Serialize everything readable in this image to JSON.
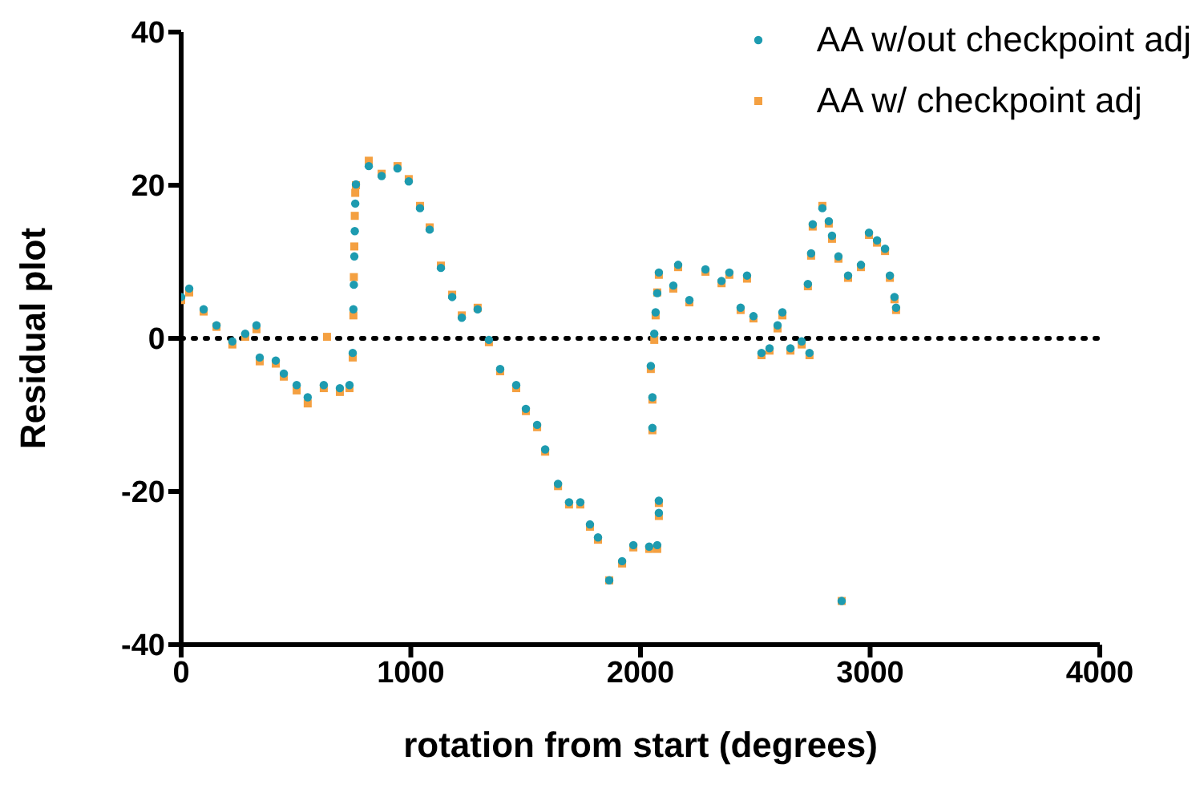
{
  "chart_data": {
    "type": "scatter",
    "xlabel": "rotation from start (degrees)",
    "ylabel": "Residual plot",
    "xlim": [
      0,
      4000
    ],
    "xticks": [
      0,
      1000,
      2000,
      3000,
      4000
    ],
    "ylim": [
      -40,
      40
    ],
    "yticks": [
      -40,
      -20,
      0,
      20,
      40
    ],
    "legend": "top right",
    "ref_lines": [
      {
        "axis": "y",
        "value": 0,
        "color": "#000000",
        "line_style": "dotted"
      }
    ],
    "series": [
      {
        "name": "AA w/ checkpoint adj",
        "color": "#f4a041",
        "marker": "square",
        "x": [
          0,
          35,
          98,
          154,
          223,
          279,
          328,
          342,
          412,
          447,
          503,
          551,
          621,
          635,
          691,
          733,
          747,
          750,
          752,
          754,
          756,
          758,
          761,
          817,
          873,
          942,
          991,
          1040,
          1082,
          1131,
          1180,
          1222,
          1291,
          1340,
          1389,
          1459,
          1501,
          1550,
          1585,
          1641,
          1689,
          1738,
          1780,
          1815,
          1864,
          1920,
          1969,
          2038,
          2045,
          2052,
          2052,
          2060,
          2066,
          2073,
          2073,
          2080,
          2080,
          2080,
          2143,
          2164,
          2213,
          2283,
          2353,
          2387,
          2436,
          2464,
          2492,
          2527,
          2562,
          2597,
          2618,
          2653,
          2702,
          2729,
          2736,
          2743,
          2750,
          2792,
          2820,
          2834,
          2862,
          2876,
          2904,
          2960,
          2995,
          3030,
          3065,
          3086,
          3106,
          3113
        ],
        "values": [
          5,
          6,
          3.5,
          1.5,
          -0.8,
          0.2,
          1.2,
          -3,
          -3.3,
          -5,
          -6.8,
          -8.5,
          -6.5,
          0.2,
          -7,
          -6.5,
          -2.5,
          3,
          8,
          12,
          16,
          19,
          20,
          23.2,
          21.5,
          22.5,
          20.8,
          17.3,
          14.5,
          9.5,
          5.7,
          3,
          4,
          -0.5,
          -4.3,
          -6.5,
          -9.5,
          -11.6,
          -14.8,
          -19.3,
          -21.7,
          -21.7,
          -24.6,
          -26.3,
          -31.6,
          -29.4,
          -27.3,
          -27.5,
          -4,
          -12,
          -8,
          -0.2,
          3,
          -27.5,
          6,
          -23.2,
          -21.5,
          8.3,
          6.5,
          9.3,
          4.7,
          8.7,
          7.2,
          8.3,
          3.7,
          7.8,
          2.6,
          -2.2,
          -1.6,
          1.3,
          3,
          -1.6,
          -0.8,
          6.8,
          -2.2,
          10.8,
          14.6,
          17.3,
          15,
          13,
          10.4,
          -34.3,
          7.9,
          9.3,
          13.5,
          12.5,
          11.4,
          7.9,
          5.1,
          3.7
        ]
      },
      {
        "name": "AA w/out checkpoint adj",
        "color": "#1d9bb0",
        "marker": "circle",
        "x": [
          0,
          35,
          98,
          154,
          223,
          279,
          328,
          342,
          412,
          447,
          503,
          551,
          621,
          691,
          733,
          747,
          750,
          752,
          754,
          756,
          758,
          761,
          817,
          873,
          942,
          991,
          1040,
          1082,
          1131,
          1180,
          1222,
          1291,
          1340,
          1389,
          1459,
          1501,
          1550,
          1585,
          1641,
          1689,
          1738,
          1780,
          1815,
          1864,
          1920,
          1969,
          2038,
          2045,
          2052,
          2052,
          2060,
          2066,
          2073,
          2073,
          2080,
          2080,
          2080,
          2143,
          2164,
          2213,
          2283,
          2353,
          2387,
          2436,
          2464,
          2492,
          2527,
          2562,
          2597,
          2618,
          2653,
          2702,
          2729,
          2736,
          2743,
          2750,
          2792,
          2820,
          2834,
          2862,
          2876,
          2904,
          2960,
          2995,
          3030,
          3065,
          3086,
          3106,
          3113
        ],
        "values": [
          5.4,
          6.5,
          3.8,
          1.7,
          -0.4,
          0.6,
          1.7,
          -2.5,
          -2.9,
          -4.6,
          -6.1,
          -7.7,
          -6.1,
          -6.5,
          -6.1,
          -1.9,
          3.8,
          7,
          10.7,
          14,
          17.6,
          20.1,
          22.5,
          21.2,
          22.2,
          20.5,
          17,
          14.2,
          9.2,
          5.4,
          2.7,
          3.8,
          -0.2,
          -4,
          -6.1,
          -9.2,
          -11.3,
          -14.5,
          -19,
          -21.4,
          -21.4,
          -24.3,
          -26,
          -31.6,
          -29.1,
          -27,
          -27.2,
          -3.6,
          -11.7,
          -7.7,
          0.6,
          3.4,
          -27,
          5.9,
          -22.8,
          -21.2,
          8.6,
          6.9,
          9.6,
          5,
          9,
          7.5,
          8.6,
          4,
          8.2,
          2.9,
          -1.9,
          -1.3,
          1.7,
          3.4,
          -1.3,
          -0.4,
          7.1,
          -1.9,
          11.1,
          14.9,
          17,
          15.3,
          13.4,
          10.7,
          -34.3,
          8.2,
          9.6,
          13.8,
          12.8,
          11.7,
          8.2,
          5.4,
          4
        ]
      }
    ]
  }
}
